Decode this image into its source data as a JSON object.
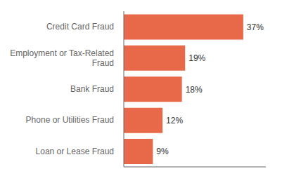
{
  "chart_data": {
    "type": "bar",
    "orientation": "horizontal",
    "categories": [
      "Loan or Lease Fraud",
      "Phone or Utilities Fraud",
      "Bank Fraud",
      "Employment or Tax-Related\nFraud",
      "Credit Card Fraud"
    ],
    "values": [
      9,
      12,
      18,
      19,
      37
    ],
    "value_labels": [
      "9%",
      "12%",
      "18%",
      "19%",
      "37%"
    ],
    "data_labels": true,
    "color": "#e8694a",
    "xlim": [
      0,
      44
    ],
    "tick_labels": "y",
    "grid": false
  }
}
